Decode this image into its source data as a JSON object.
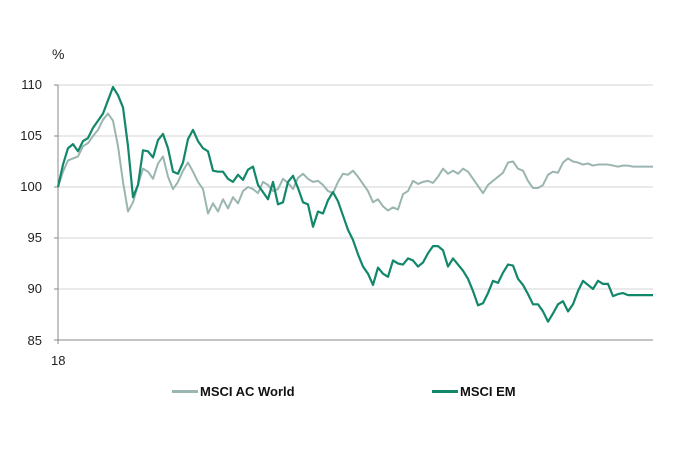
{
  "chart_data": {
    "type": "line",
    "title": "",
    "ylabel": "%",
    "xlabel": "",
    "ylim": [
      85,
      110
    ],
    "yticks": [
      85,
      90,
      95,
      100,
      105,
      110
    ],
    "xticks": [
      "18"
    ],
    "grid": true,
    "legend_position": "bottom",
    "x": [
      0,
      5,
      10,
      15,
      20,
      25,
      30,
      35,
      40,
      45,
      50,
      55,
      60,
      65,
      70,
      75,
      80,
      85,
      90,
      95,
      100,
      105,
      110,
      115,
      120,
      125,
      130,
      135,
      140,
      145,
      150,
      155,
      160,
      165,
      170,
      175,
      180,
      185,
      190,
      195,
      200,
      205,
      210,
      215,
      220,
      225,
      230,
      235,
      240,
      245,
      250,
      255,
      260,
      265,
      270,
      275,
      280,
      285,
      290,
      295,
      300,
      305,
      310,
      315,
      320,
      325,
      330,
      335,
      340,
      345,
      350,
      355,
      360,
      365,
      370,
      375,
      380,
      385,
      390,
      395,
      400,
      405,
      410,
      415,
      420,
      425,
      430,
      435,
      440,
      445,
      450,
      455,
      460,
      465,
      470,
      475,
      480,
      485,
      490,
      495,
      500,
      505,
      510,
      515,
      520,
      525,
      530,
      535,
      540,
      545,
      550,
      555,
      560,
      565,
      570,
      575,
      580,
      585,
      590,
      595
    ],
    "series": [
      {
        "name": "MSCI AC World",
        "color": "#9bb5b0",
        "values": [
          100,
          101.5,
          102.6,
          102.8,
          103,
          104,
          104.3,
          105,
          105.6,
          106.6,
          107.2,
          106.5,
          104,
          100.5,
          97.6,
          98.5,
          100.2,
          101.8,
          101.5,
          100.8,
          102.3,
          103,
          101,
          99.8,
          100.5,
          101.6,
          102.4,
          101.5,
          100.5,
          99.8,
          97.4,
          98.4,
          97.6,
          98.8,
          97.9,
          99,
          98.4,
          99.6,
          100,
          99.8,
          99.4,
          100.5,
          100.2,
          99.6,
          99.8,
          100.8,
          100.4,
          99.8,
          100.9,
          101.3,
          100.8,
          100.5,
          100.6,
          100.2,
          99.6,
          99.4,
          100.5,
          101.3,
          101.2,
          101.6,
          101,
          100.3,
          99.6,
          98.5,
          98.8,
          98.1,
          97.7,
          98,
          97.8,
          99.3,
          99.6,
          100.6,
          100.3,
          100.5,
          100.6,
          100.4,
          101,
          101.8,
          101.3,
          101.6,
          101.3,
          101.8,
          101.5,
          100.8,
          100.1,
          99.4,
          100.2,
          100.6,
          101,
          101.4,
          102.4,
          102.5,
          101.8,
          101.6,
          100.6,
          99.9,
          99.9,
          100.2,
          101.2,
          101.5,
          101.4,
          102.4,
          102.8,
          102.5,
          102.4,
          102.2,
          102.3,
          102.1,
          102.2,
          102.2,
          102.2,
          102.1,
          102,
          102.1,
          102.1,
          102,
          102,
          102,
          102,
          102
        ]
      },
      {
        "name": "MSCI EM",
        "color": "#12876a",
        "values": [
          100,
          102.2,
          103.8,
          104.2,
          103.5,
          104.5,
          104.8,
          105.8,
          106.5,
          107.2,
          108.5,
          109.8,
          109,
          107.8,
          104,
          99,
          100.2,
          103.6,
          103.5,
          102.9,
          104.6,
          105.2,
          103.8,
          101.5,
          101.3,
          102.4,
          104.7,
          105.6,
          104.5,
          103.8,
          103.5,
          101.6,
          101.5,
          101.5,
          100.8,
          100.5,
          101.2,
          100.7,
          101.7,
          102,
          100.2,
          99.5,
          98.8,
          100.5,
          98.3,
          98.5,
          100.5,
          101.1,
          99.9,
          98.5,
          98.3,
          96.1,
          97.6,
          97.4,
          98.7,
          99.5,
          98.6,
          97.2,
          95.8,
          94.8,
          93.4,
          92.2,
          91.5,
          90.4,
          92.1,
          91.5,
          91.2,
          92.8,
          92.5,
          92.4,
          93,
          92.8,
          92.2,
          92.6,
          93.5,
          94.2,
          94.2,
          93.8,
          92.2,
          93,
          92.4,
          91.8,
          91,
          89.8,
          88.4,
          88.6,
          89.6,
          90.8,
          90.6,
          91.6,
          92.4,
          92.3,
          91,
          90.4,
          89.5,
          88.5,
          88.5,
          87.8,
          86.8,
          87.6,
          88.5,
          88.8,
          87.8,
          88.5,
          89.8,
          90.8,
          90.4,
          90,
          90.8,
          90.5,
          90.5,
          89.3,
          89.5,
          89.6,
          89.4,
          89.4,
          89.4,
          89.4,
          89.4,
          89.4
        ]
      }
    ]
  },
  "axis": {
    "unit_label": "%",
    "y_labels": [
      "110",
      "105",
      "100",
      "95",
      "90",
      "85"
    ],
    "x_label_first": "18"
  },
  "legend": {
    "items": [
      {
        "label": "MSCI AC World",
        "color": "#9bb5b0"
      },
      {
        "label": "MSCI EM",
        "color": "#12876a"
      }
    ]
  }
}
